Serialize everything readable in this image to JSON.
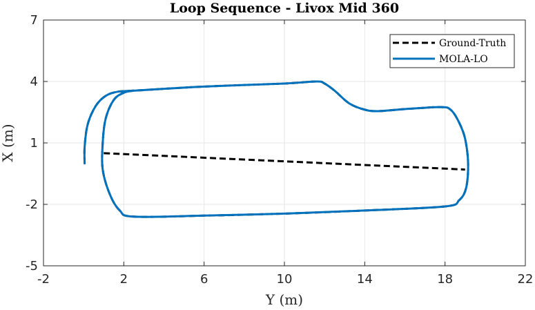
{
  "chart_data": {
    "type": "line",
    "title": "Loop Sequence - Livox Mid 360",
    "xlabel": "Y (m)",
    "ylabel": "X (m)",
    "xlim": [
      -2,
      22
    ],
    "ylim": [
      -5,
      7
    ],
    "xticks": [
      -2,
      2,
      6,
      10,
      14,
      18,
      22
    ],
    "yticks": [
      -5,
      -2,
      1,
      4,
      7
    ],
    "xtick_labels": [
      "-2",
      "2",
      "6",
      "10",
      "14",
      "18",
      "22"
    ],
    "ytick_labels": [
      "-5",
      "-2",
      "1",
      "4",
      "7"
    ],
    "grid": true,
    "legend_position": "top-right",
    "colors": {
      "ground_truth": "#000000",
      "mola_lo": "#0072bd",
      "grid": "#e6e6e6",
      "axis": "#262626"
    },
    "series": [
      {
        "name": "Ground-Truth",
        "style": "dashed",
        "points": [
          [
            1.0,
            0.5
          ],
          [
            19.0,
            -0.3
          ]
        ]
      },
      {
        "name": "MOLA-LO",
        "style": "solid",
        "points": [
          [
            0.05,
            0.0
          ],
          [
            0.05,
            0.8
          ],
          [
            0.2,
            1.9
          ],
          [
            0.6,
            2.8
          ],
          [
            1.1,
            3.3
          ],
          [
            1.7,
            3.5
          ],
          [
            2.5,
            3.55
          ],
          [
            6.0,
            3.75
          ],
          [
            10.0,
            3.9
          ],
          [
            11.6,
            4.0
          ],
          [
            12.0,
            3.9
          ],
          [
            12.5,
            3.55
          ],
          [
            13.2,
            2.95
          ],
          [
            13.9,
            2.65
          ],
          [
            14.6,
            2.55
          ],
          [
            16.0,
            2.65
          ],
          [
            17.8,
            2.75
          ],
          [
            18.3,
            2.6
          ],
          [
            18.7,
            2.0
          ],
          [
            19.0,
            1.2
          ],
          [
            19.15,
            0.0
          ],
          [
            19.05,
            -1.2
          ],
          [
            18.7,
            -1.8
          ],
          [
            18.0,
            -2.1
          ],
          [
            14.0,
            -2.3
          ],
          [
            10.0,
            -2.45
          ],
          [
            6.0,
            -2.55
          ],
          [
            2.5,
            -2.6
          ],
          [
            1.8,
            -2.3
          ],
          [
            1.3,
            -1.5
          ],
          [
            0.95,
            -0.3
          ],
          [
            0.95,
            1.0
          ],
          [
            1.1,
            2.2
          ],
          [
            1.5,
            3.1
          ],
          [
            2.0,
            3.45
          ],
          [
            2.5,
            3.55
          ]
        ]
      }
    ]
  }
}
